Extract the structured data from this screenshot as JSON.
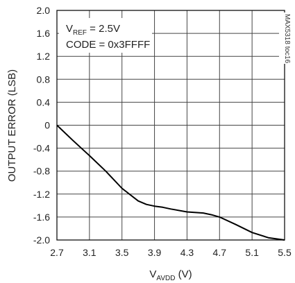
{
  "chart_data": {
    "type": "line",
    "title": "",
    "xlabel": "V",
    "xlabel_sub": "AVDD",
    "xlabel_unit": " (V)",
    "ylabel": "OUTPUT ERROR (LSB)",
    "xlim": [
      2.7,
      5.5
    ],
    "ylim": [
      -2.0,
      2.0
    ],
    "x_ticks": [
      2.7,
      3.1,
      3.5,
      3.9,
      4.3,
      4.7,
      5.1,
      5.5
    ],
    "x_tick_labels": [
      "2.7",
      "3.1",
      "3.5",
      "3.9",
      "4.3",
      "4.7",
      "5.1",
      "5.5"
    ],
    "y_ticks": [
      2.0,
      1.6,
      1.2,
      0.8,
      0.4,
      0,
      -0.4,
      -0.8,
      -1.2,
      -1.6,
      -2.0
    ],
    "y_tick_labels": [
      "2.0",
      "1.6",
      "1.2",
      "0.8",
      "0.4",
      "0",
      "-0.4",
      "-0.8",
      "-1.2",
      "-1.6",
      "-2.0"
    ],
    "grid": true,
    "series": [
      {
        "x": [
          2.7,
          2.9,
          3.1,
          3.3,
          3.5,
          3.7,
          3.8,
          3.9,
          4.0,
          4.1,
          4.3,
          4.5,
          4.6,
          4.7,
          4.9,
          5.1,
          5.3,
          5.5
        ],
        "y": [
          0.0,
          -0.27,
          -0.53,
          -0.8,
          -1.1,
          -1.32,
          -1.38,
          -1.41,
          -1.43,
          -1.46,
          -1.51,
          -1.53,
          -1.56,
          -1.6,
          -1.73,
          -1.87,
          -1.96,
          -2.0
        ]
      }
    ],
    "annotation": {
      "line1_prefix": "V",
      "line1_sub": "REF",
      "line1_suffix": " = 2.5V",
      "line2": "CODE = 0x3FFFF"
    },
    "figure_tag": "MAX5318 toc16"
  }
}
